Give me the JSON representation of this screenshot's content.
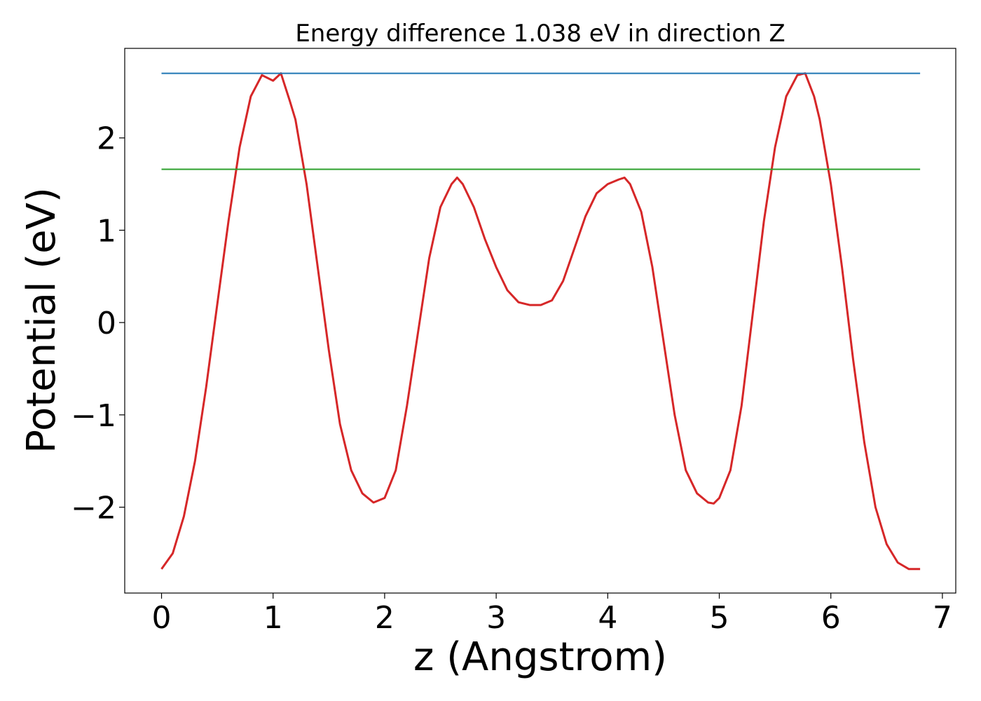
{
  "chart_data": {
    "type": "line",
    "title": "Energy difference 1.038 eV in direction Z",
    "xlabel": "z (Angstrom)",
    "ylabel": "Potential (eV)",
    "xlim": [
      -0.33,
      7.12
    ],
    "ylim": [
      -2.93,
      2.97
    ],
    "xticks": [
      0,
      1,
      2,
      3,
      4,
      5,
      6,
      7
    ],
    "xtick_labels": [
      "0",
      "1",
      "2",
      "3",
      "4",
      "5",
      "6",
      "7"
    ],
    "yticks": [
      -2,
      -1,
      0,
      1,
      2
    ],
    "ytick_labels": [
      "−2",
      "−1",
      "0",
      "1",
      "2"
    ],
    "grid": false,
    "series": [
      {
        "color": "#d62728",
        "x": [
          0.0,
          0.1,
          0.2,
          0.3,
          0.4,
          0.5,
          0.6,
          0.7,
          0.8,
          0.9,
          1.0,
          1.07,
          1.15,
          1.2,
          1.3,
          1.4,
          1.5,
          1.6,
          1.7,
          1.8,
          1.9,
          2.0,
          2.1,
          2.2,
          2.3,
          2.4,
          2.5,
          2.6,
          2.65,
          2.7,
          2.8,
          2.9,
          3.0,
          3.1,
          3.2,
          3.3,
          3.4,
          3.5,
          3.6,
          3.7,
          3.8,
          3.9,
          4.0,
          4.1,
          4.15,
          4.2,
          4.3,
          4.4,
          4.5,
          4.6,
          4.7,
          4.8,
          4.9,
          4.95,
          5.0,
          5.1,
          5.2,
          5.3,
          5.4,
          5.5,
          5.6,
          5.7,
          5.77,
          5.85,
          5.9,
          6.0,
          6.1,
          6.2,
          6.3,
          6.4,
          6.5,
          6.6,
          6.7,
          6.8
        ],
        "y": [
          -2.67,
          -2.5,
          -2.1,
          -1.5,
          -0.7,
          0.2,
          1.1,
          1.9,
          2.45,
          2.68,
          2.62,
          2.7,
          2.4,
          2.2,
          1.5,
          0.6,
          -0.3,
          -1.1,
          -1.6,
          -1.85,
          -1.95,
          -1.9,
          -1.6,
          -0.9,
          -0.1,
          0.7,
          1.25,
          1.5,
          1.57,
          1.5,
          1.25,
          0.9,
          0.6,
          0.35,
          0.22,
          0.19,
          0.19,
          0.24,
          0.45,
          0.8,
          1.15,
          1.4,
          1.5,
          1.55,
          1.57,
          1.5,
          1.2,
          0.6,
          -0.2,
          -1.0,
          -1.6,
          -1.85,
          -1.95,
          -1.96,
          -1.9,
          -1.6,
          -0.9,
          0.1,
          1.1,
          1.9,
          2.45,
          2.68,
          2.7,
          2.45,
          2.2,
          1.5,
          0.6,
          -0.4,
          -1.3,
          -2.0,
          -2.4,
          -2.6,
          -2.67,
          -2.67
        ]
      },
      {
        "color": "#1f77b4",
        "x": [
          0.0,
          6.8
        ],
        "y": [
          2.7,
          2.7
        ]
      },
      {
        "color": "#2ca02c",
        "x": [
          0.0,
          6.8
        ],
        "y": [
          1.66,
          1.66
        ]
      }
    ]
  }
}
